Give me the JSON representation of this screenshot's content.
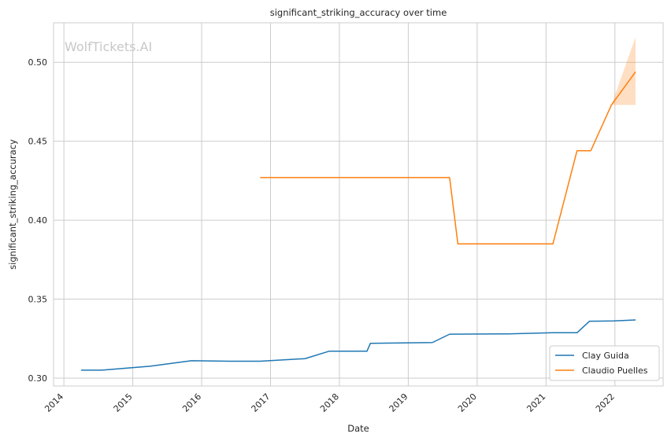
{
  "chart_data": {
    "type": "line",
    "title": "significant_striking_accuracy over time",
    "xlabel": "Date",
    "ylabel": "significant_striking_accuracy",
    "watermark": "WolfTickets.AI",
    "xlim": [
      2013.85,
      2022.7
    ],
    "ylim": [
      0.295,
      0.525
    ],
    "x_ticks": [
      2014,
      2015,
      2016,
      2017,
      2018,
      2019,
      2020,
      2021,
      2022
    ],
    "x_tick_labels": [
      "2014",
      "2015",
      "2016",
      "2017",
      "2018",
      "2019",
      "2020",
      "2021",
      "2022"
    ],
    "y_ticks": [
      0.3,
      0.35,
      0.4,
      0.45,
      0.5
    ],
    "y_tick_labels": [
      "0.30",
      "0.35",
      "0.40",
      "0.45",
      "0.50"
    ],
    "grid": true,
    "legend_position": "bottom-right",
    "series": [
      {
        "name": "Clay Guida",
        "color": "#1f77b4",
        "points": [
          [
            2014.25,
            0.305
          ],
          [
            2014.55,
            0.305
          ],
          [
            2015.25,
            0.3075
          ],
          [
            2015.85,
            0.311
          ],
          [
            2016.4,
            0.3107
          ],
          [
            2016.85,
            0.3107
          ],
          [
            2017.5,
            0.3123
          ],
          [
            2017.85,
            0.317
          ],
          [
            2018.4,
            0.317
          ],
          [
            2018.45,
            0.322
          ],
          [
            2019.35,
            0.3225
          ],
          [
            2019.6,
            0.3278
          ],
          [
            2020.45,
            0.328
          ],
          [
            2021.1,
            0.3287
          ],
          [
            2021.45,
            0.3287
          ],
          [
            2021.63,
            0.336
          ],
          [
            2021.98,
            0.3362
          ],
          [
            2022.3,
            0.3368
          ]
        ]
      },
      {
        "name": "Claudio Puelles",
        "color": "#ff7f0e",
        "points": [
          [
            2016.85,
            0.427
          ],
          [
            2019.6,
            0.427
          ],
          [
            2019.72,
            0.385
          ],
          [
            2021.1,
            0.385
          ],
          [
            2021.45,
            0.444
          ],
          [
            2021.65,
            0.444
          ],
          [
            2021.95,
            0.473
          ],
          [
            2022.3,
            0.494
          ]
        ],
        "band": [
          [
            2021.95,
            0.473,
            0.473
          ],
          [
            2022.3,
            0.473,
            0.516
          ]
        ]
      }
    ]
  }
}
